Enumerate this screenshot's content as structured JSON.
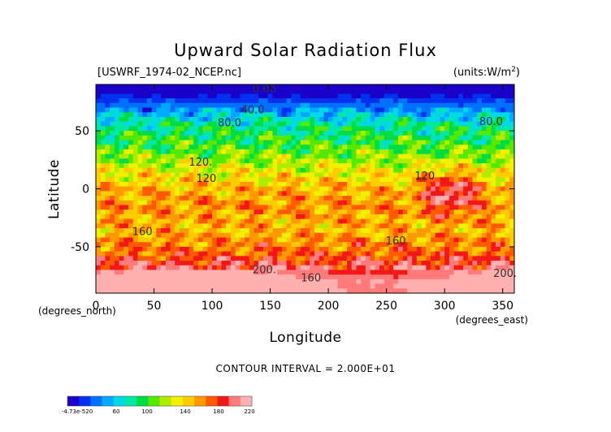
{
  "chart_data": {
    "type": "heatmap",
    "title": "Upward Solar Radiation Flux",
    "file_label": "[USWRF_1974-02_NCEP.nc]",
    "units_label": "(units:W/m^2)",
    "xlabel": "Longitude",
    "ylabel": "Latitude",
    "x_unit_label": "(degrees_east)",
    "y_unit_label": "(degrees_north)",
    "xlim": [
      0,
      360
    ],
    "ylim": [
      -90,
      90
    ],
    "x_ticks": [
      0,
      50,
      100,
      150,
      200,
      250,
      300,
      350
    ],
    "y_ticks": [
      -50,
      0,
      50
    ],
    "contour_interval_text": "CONTOUR INTERVAL = 2.000E+01",
    "contour_labels": [
      {
        "text": "0.00",
        "lon": 145,
        "lat": 83
      },
      {
        "text": "40.0",
        "lon": 135,
        "lat": 65
      },
      {
        "text": "80.0",
        "lon": 115,
        "lat": 54
      },
      {
        "text": "80.0",
        "lon": 340,
        "lat": 55
      },
      {
        "text": "120.",
        "lon": 90,
        "lat": 20
      },
      {
        "text": "120",
        "lon": 95,
        "lat": 6
      },
      {
        "text": "120",
        "lon": 283,
        "lat": 8
      },
      {
        "text": "160",
        "lon": 40,
        "lat": -40
      },
      {
        "text": "160",
        "lon": 258,
        "lat": -48
      },
      {
        "text": "200.",
        "lon": 145,
        "lat": -73
      },
      {
        "text": "160",
        "lon": 185,
        "lat": -80
      },
      {
        "text": "200.",
        "lon": 352,
        "lat": -76
      }
    ],
    "latitude_band_profile": [
      {
        "lat": 85,
        "value": 0
      },
      {
        "lat": 70,
        "value": 40
      },
      {
        "lat": 55,
        "value": 80
      },
      {
        "lat": 35,
        "value": 100
      },
      {
        "lat": 15,
        "value": 130
      },
      {
        "lat": 0,
        "value": 150
      },
      {
        "lat": -15,
        "value": 160
      },
      {
        "lat": -35,
        "value": 150
      },
      {
        "lat": -55,
        "value": 170
      },
      {
        "lat": -65,
        "value": 190
      },
      {
        "lat": -80,
        "value": 220
      }
    ],
    "colorbar": {
      "label_texts": [
        "-4.73e-520",
        "60",
        "100",
        "140",
        "180",
        "220"
      ],
      "colors": [
        "#1a00c8",
        "#0030f0",
        "#0070ff",
        "#00a8ff",
        "#00d8e8",
        "#00e8a8",
        "#00dd44",
        "#55e800",
        "#b0ec00",
        "#f0f000",
        "#ffcc00",
        "#ff9900",
        "#ff5a00",
        "#f21818",
        "#ff7a7a",
        "#ffb0b0"
      ]
    }
  }
}
